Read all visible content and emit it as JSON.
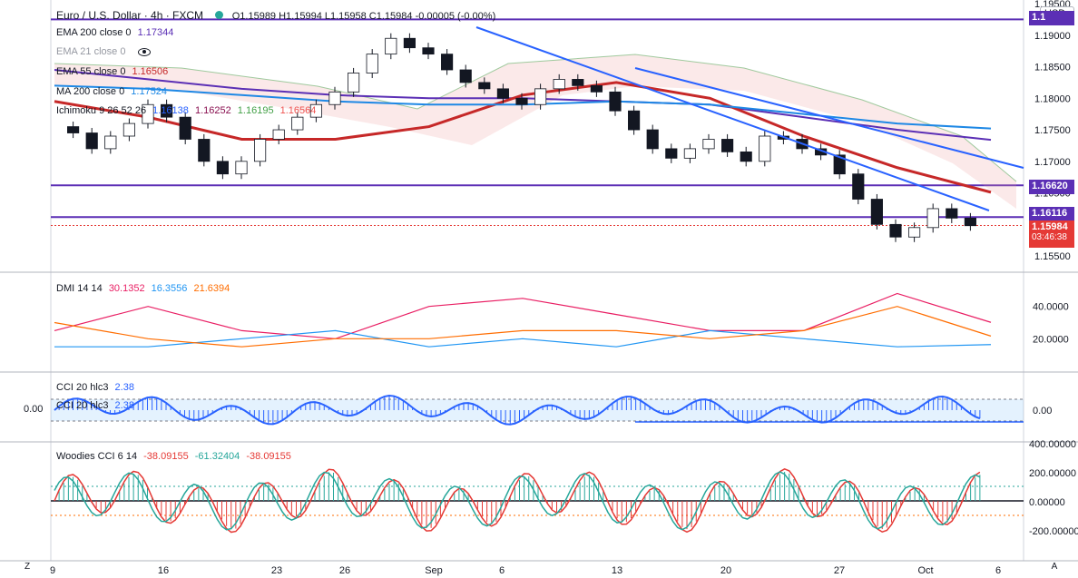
{
  "header": {
    "symbol": "Euro / U.S. Dollar · 4h · FXCM",
    "ohlc": "O1.15989 H1.15994 L1.15958 C1.15984 -0.00005 (-0.00%)",
    "currency": "USD"
  },
  "legend": {
    "ema200": {
      "label": "EMA 200 close 0",
      "value": "1.17344",
      "color": "#5b2fb5"
    },
    "ema21": {
      "label": "EMA 21 close 0",
      "value": "",
      "color": "#2962ff"
    },
    "ema55": {
      "label": "EMA 55 close 0",
      "value": "1.16506",
      "color": "#c62828"
    },
    "ma200": {
      "label": "MA 200 close 0",
      "value": "1.17524",
      "color": "#1e88e5"
    },
    "ichimoku": {
      "label": "Ichimoku 9 26 52 26",
      "v1": "1.16138",
      "v2": "1.16252",
      "v3": "1.16195",
      "v4": "1.16564"
    }
  },
  "price_tags": {
    "top": "1.1",
    "level1": "1.16620",
    "level2": "1.16116",
    "last": "1.15984",
    "countdown": "03:46:38"
  },
  "price_axis": [
    "1.19500",
    "1.19000",
    "1.18500",
    "1.18000",
    "1.17500",
    "1.17000",
    "1.16500",
    "1.15500"
  ],
  "x_axis": [
    "9",
    "16",
    "23",
    "26",
    "Sep",
    "6",
    "13",
    "20",
    "27",
    "Oct",
    "6"
  ],
  "dmi": {
    "label": "DMI 14 14",
    "plus": "30.1352",
    "minus": "16.3556",
    "adx": "21.6394",
    "axis": [
      "40.0000",
      "20.0000"
    ]
  },
  "cci": {
    "label": "CCI 20 hlc3",
    "value": "2.38",
    "label2": "CCI 20 hlc3",
    "value2": "2.38",
    "axis_left": "0.00",
    "axis_right": "0.00"
  },
  "woodies": {
    "label": "Woodies CCI 6 14",
    "v1": "-38.09155",
    "v2": "-61.32404",
    "v3": "-38.09155",
    "axis": [
      "400.00000",
      "200.00000",
      "0.00000",
      "-200.00000"
    ]
  },
  "bottom": {
    "left_btn": "Z",
    "right_btn": "A"
  },
  "chart_data": {
    "type": "line",
    "title": "Euro / U.S. Dollar · 4h · FXCM",
    "xlabel": "",
    "ylabel": "",
    "x": [
      "9",
      "16",
      "23",
      "26",
      "Sep",
      "6",
      "13",
      "20",
      "27",
      "Oct",
      "6"
    ],
    "ylim": [
      1.153,
      1.195
    ],
    "horizontal_levels": [
      1.1925,
      1.1662,
      1.16116
    ],
    "series": [
      {
        "name": "EMA 200 close 0",
        "values": [
          1.1845,
          1.183,
          1.1815,
          1.1805,
          1.18,
          1.18,
          1.1795,
          1.179,
          1.177,
          1.175,
          1.1734
        ]
      },
      {
        "name": "EMA 55 close 0",
        "values": [
          1.1795,
          1.177,
          1.1735,
          1.1735,
          1.1755,
          1.1805,
          1.1825,
          1.18,
          1.174,
          1.169,
          1.1651
        ]
      },
      {
        "name": "MA 200 close 0",
        "values": [
          1.182,
          1.1815,
          1.1805,
          1.1795,
          1.179,
          1.179,
          1.1795,
          1.179,
          1.1775,
          1.176,
          1.1752
        ]
      },
      {
        "name": "DMI +DI",
        "values": [
          25,
          40,
          25,
          20,
          40,
          45,
          35,
          25,
          25,
          48,
          30.1352
        ]
      },
      {
        "name": "DMI -DI",
        "values": [
          15,
          15,
          20,
          25,
          15,
          20,
          15,
          25,
          20,
          15,
          16.3556
        ]
      },
      {
        "name": "DMI ADX",
        "values": [
          30,
          20,
          15,
          20,
          20,
          25,
          25,
          20,
          25,
          40,
          21.6394
        ]
      }
    ]
  }
}
